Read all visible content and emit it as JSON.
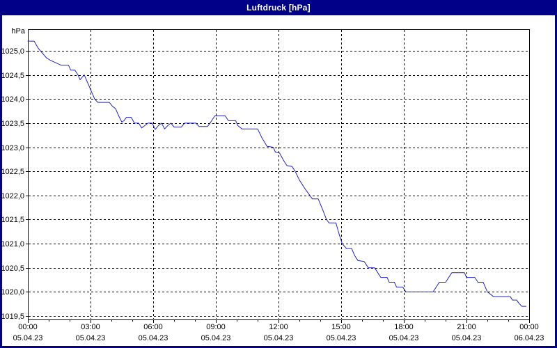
{
  "window": {
    "title": "Luftdruck [hPa]"
  },
  "colors": {
    "titlebar_bg": "#000088",
    "title_text": "#ffffff",
    "panel_bg": "#ffffff",
    "grid": "#000000",
    "line": "#2222cc",
    "label_text": "#000000"
  },
  "chart_data": {
    "type": "line",
    "title": "Luftdruck [hPa]",
    "xlabel": "",
    "ylabel": "hPa",
    "ylim": [
      1019.5,
      1025.45
    ],
    "xlim_hours": [
      0,
      24
    ],
    "grid": "dashed black, every 0.5 hPa horizontal and every 3 h vertical, minor x ticks hourly",
    "legend_position": "none",
    "y_ticks": [
      {
        "value": 1025.0,
        "label": "1025,0"
      },
      {
        "value": 1024.5,
        "label": "1024,5"
      },
      {
        "value": 1024.0,
        "label": "1024,0"
      },
      {
        "value": 1023.5,
        "label": "1023,5"
      },
      {
        "value": 1023.0,
        "label": "1023,0"
      },
      {
        "value": 1022.5,
        "label": "1022,5"
      },
      {
        "value": 1022.0,
        "label": "1022,0"
      },
      {
        "value": 1021.5,
        "label": "1021,5"
      },
      {
        "value": 1021.0,
        "label": "1021,0"
      },
      {
        "value": 1020.5,
        "label": "1020,5"
      },
      {
        "value": 1020.0,
        "label": "1020,0"
      },
      {
        "value": 1019.5,
        "label": "1019,5"
      }
    ],
    "x_ticks": [
      {
        "hour": 0,
        "time": "00:00",
        "date": "05.04.23"
      },
      {
        "hour": 3,
        "time": "03:00",
        "date": "05.04.23"
      },
      {
        "hour": 6,
        "time": "06:00",
        "date": "05.04.23"
      },
      {
        "hour": 9,
        "time": "09:00",
        "date": "05.04.23"
      },
      {
        "hour": 12,
        "time": "12:00",
        "date": "05.04.23"
      },
      {
        "hour": 15,
        "time": "15:00",
        "date": "05.04.23"
      },
      {
        "hour": 18,
        "time": "18:00",
        "date": "05.04.23"
      },
      {
        "hour": 21,
        "time": "21:00",
        "date": "05.04.23"
      },
      {
        "hour": 24,
        "time": "00:00",
        "date": "06.04.23"
      }
    ],
    "series": [
      {
        "name": "Luftdruck",
        "unit": "hPa",
        "color": "#2222cc",
        "points": [
          [
            0.0,
            1025.2
          ],
          [
            0.3,
            1025.2
          ],
          [
            0.5,
            1025.05
          ],
          [
            0.7,
            1024.95
          ],
          [
            0.9,
            1024.85
          ],
          [
            1.1,
            1024.8
          ],
          [
            1.35,
            1024.75
          ],
          [
            1.6,
            1024.7
          ],
          [
            1.95,
            1024.7
          ],
          [
            2.05,
            1024.6
          ],
          [
            2.25,
            1024.6
          ],
          [
            2.4,
            1024.5
          ],
          [
            2.5,
            1024.4
          ],
          [
            2.6,
            1024.45
          ],
          [
            2.7,
            1024.5
          ],
          [
            2.8,
            1024.4
          ],
          [
            3.0,
            1024.2
          ],
          [
            3.2,
            1024.0
          ],
          [
            3.35,
            1023.93
          ],
          [
            3.9,
            1023.93
          ],
          [
            4.05,
            1023.85
          ],
          [
            4.2,
            1023.8
          ],
          [
            4.35,
            1023.65
          ],
          [
            4.5,
            1023.52
          ],
          [
            4.6,
            1023.55
          ],
          [
            4.72,
            1023.62
          ],
          [
            4.95,
            1023.62
          ],
          [
            5.1,
            1023.5
          ],
          [
            5.3,
            1023.5
          ],
          [
            5.45,
            1023.4
          ],
          [
            5.6,
            1023.45
          ],
          [
            5.75,
            1023.5
          ],
          [
            5.95,
            1023.5
          ],
          [
            6.1,
            1023.37
          ],
          [
            6.25,
            1023.45
          ],
          [
            6.4,
            1023.5
          ],
          [
            6.55,
            1023.38
          ],
          [
            6.7,
            1023.45
          ],
          [
            6.85,
            1023.5
          ],
          [
            7.0,
            1023.42
          ],
          [
            7.35,
            1023.42
          ],
          [
            7.5,
            1023.5
          ],
          [
            8.05,
            1023.5
          ],
          [
            8.2,
            1023.43
          ],
          [
            8.6,
            1023.43
          ],
          [
            8.8,
            1023.55
          ],
          [
            8.95,
            1023.65
          ],
          [
            9.45,
            1023.65
          ],
          [
            9.6,
            1023.55
          ],
          [
            9.95,
            1023.55
          ],
          [
            10.05,
            1023.45
          ],
          [
            10.25,
            1023.38
          ],
          [
            11.0,
            1023.38
          ],
          [
            11.2,
            1023.2
          ],
          [
            11.45,
            1023.02
          ],
          [
            11.75,
            1023.0
          ],
          [
            11.85,
            1022.9
          ],
          [
            12.05,
            1022.88
          ],
          [
            12.25,
            1022.72
          ],
          [
            12.4,
            1022.62
          ],
          [
            12.65,
            1022.6
          ],
          [
            12.8,
            1022.5
          ],
          [
            13.0,
            1022.32
          ],
          [
            13.25,
            1022.15
          ],
          [
            13.5,
            1022.0
          ],
          [
            13.62,
            1021.93
          ],
          [
            13.9,
            1021.93
          ],
          [
            14.1,
            1021.72
          ],
          [
            14.3,
            1021.5
          ],
          [
            14.42,
            1021.43
          ],
          [
            14.75,
            1021.43
          ],
          [
            14.9,
            1021.2
          ],
          [
            15.05,
            1021.0
          ],
          [
            15.25,
            1020.9
          ],
          [
            15.5,
            1020.9
          ],
          [
            15.65,
            1020.75
          ],
          [
            15.8,
            1020.65
          ],
          [
            16.1,
            1020.63
          ],
          [
            16.3,
            1020.5
          ],
          [
            16.6,
            1020.5
          ],
          [
            16.75,
            1020.4
          ],
          [
            16.9,
            1020.3
          ],
          [
            17.2,
            1020.3
          ],
          [
            17.3,
            1020.2
          ],
          [
            17.55,
            1020.2
          ],
          [
            17.65,
            1020.1
          ],
          [
            17.95,
            1020.1
          ],
          [
            18.1,
            1020.0
          ],
          [
            19.4,
            1020.0
          ],
          [
            19.55,
            1020.1
          ],
          [
            19.7,
            1020.2
          ],
          [
            20.0,
            1020.2
          ],
          [
            20.15,
            1020.3
          ],
          [
            20.3,
            1020.4
          ],
          [
            20.9,
            1020.4
          ],
          [
            21.0,
            1020.3
          ],
          [
            21.4,
            1020.3
          ],
          [
            21.55,
            1020.2
          ],
          [
            21.8,
            1020.2
          ],
          [
            22.0,
            1020.0
          ],
          [
            22.15,
            1019.95
          ],
          [
            22.3,
            1019.9
          ],
          [
            23.1,
            1019.9
          ],
          [
            23.2,
            1019.83
          ],
          [
            23.4,
            1019.83
          ],
          [
            23.5,
            1019.77
          ],
          [
            23.65,
            1019.7
          ],
          [
            23.85,
            1019.7
          ]
        ]
      }
    ]
  }
}
